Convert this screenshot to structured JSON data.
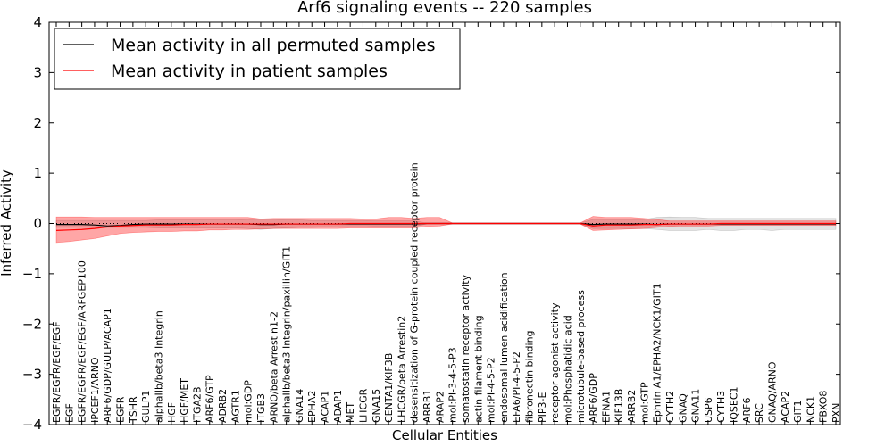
{
  "chart_data": {
    "type": "line",
    "title": "Arf6 signaling events -- 220 samples",
    "xlabel": "Cellular Entities",
    "ylabel": "Inferred Activity",
    "ylim": [
      -4,
      4
    ],
    "yticks": [
      -4,
      -3,
      -2,
      -1,
      0,
      1,
      2,
      3,
      4
    ],
    "ytick_labels": [
      "−4",
      "−3",
      "−2",
      "−1",
      "0",
      "1",
      "2",
      "3",
      "4"
    ],
    "legend": {
      "placement": "top-left",
      "entries": [
        {
          "label": "Mean activity in all permuted samples",
          "color": "#000000"
        },
        {
          "label": "Mean activity in patient samples",
          "color": "#ff0000"
        }
      ]
    },
    "categories": [
      "EGFR/EGFR/EGF/EGF",
      "EGF",
      "EGFR/EGFR/EGF/EGF/ARFGEP100",
      "IPCEF1/ARNO",
      "ARF6/GDP/GULP/ACAP1",
      "EGFR",
      "TSHR",
      "GULP1",
      "alphaIIb/beta3 Integrin",
      "HGF",
      "HGF/MET",
      "ITGA2B",
      "ARF6/GTP",
      "ADRB2",
      "AGTR1",
      "mol:GDP",
      "ITGB3",
      "ARNO/beta Arrestin1-2",
      "alphaIIb/beta3 Integrin/paxillin/GIT1",
      "GNA14",
      "EPHA2",
      "ACAP1",
      "ADAP1",
      "MET",
      "LHCGR",
      "GNA15",
      "CENTA1/KIF3B",
      "LHCGR/beta Arrestin2",
      "desensitization of G-protein coupled receptor protein",
      "ARRB1",
      "ARAP2",
      "mol:PI-3-4-5-P3",
      "somatostatin receptor activity",
      "actin filament binding",
      "mol:PI-4-5-P2",
      "endosomal lumen acidification",
      "EFA6/PI-4-5-P2",
      "fibronectin binding",
      "PIP3-E",
      "receptor agonist activity",
      "mol:Phosphatidic acid",
      "microtubule-based process",
      "ARF6/GDP",
      "EFNA1",
      "KIF13B",
      "ARRB2",
      "mol:GTP",
      "Ephrin A1/EPHA2/NCK1/GIT1",
      "CYTH2",
      "GNAQ",
      "GNA11",
      "USP6",
      "CYTH3",
      "IQSEC1",
      "ARF6",
      "SRC",
      "GNAQ/ARNO",
      "ACAP2",
      "GIT1",
      "NCK1",
      "FBXO8",
      "PXN"
    ],
    "series": [
      {
        "name": "Mean activity in all permuted samples",
        "color": "#000000",
        "values": [
          -0.02,
          -0.02,
          -0.02,
          -0.03,
          -0.05,
          -0.04,
          -0.02,
          -0.01,
          -0.01,
          -0.01,
          -0.01,
          -0.01,
          -0.01,
          -0.01,
          -0.01,
          -0.01,
          -0.02,
          -0.02,
          -0.01,
          -0.01,
          -0.01,
          -0.01,
          -0.01,
          -0.01,
          -0.01,
          -0.01,
          -0.01,
          -0.01,
          -0.01,
          0.0,
          0.0,
          0.0,
          0.0,
          0.0,
          0.0,
          0.0,
          0.0,
          0.0,
          0.0,
          0.0,
          0.0,
          0.0,
          -0.02,
          -0.01,
          -0.01,
          -0.01,
          -0.01,
          -0.02,
          -0.01,
          -0.01,
          -0.01,
          -0.01,
          -0.01,
          -0.01,
          -0.01,
          -0.01,
          -0.01,
          -0.01,
          -0.01,
          -0.01,
          -0.01,
          -0.01
        ],
        "band_low": [
          -0.08,
          -0.08,
          -0.08,
          -0.08,
          -0.08,
          -0.08,
          -0.08,
          -0.08,
          -0.09,
          -0.09,
          -0.09,
          -0.09,
          -0.09,
          -0.09,
          -0.09,
          -0.1,
          -0.12,
          -0.1,
          -0.09,
          -0.08,
          -0.08,
          -0.07,
          -0.07,
          -0.07,
          -0.07,
          -0.06,
          -0.06,
          -0.06,
          -0.06,
          -0.01,
          -0.01,
          -0.01,
          -0.01,
          -0.01,
          -0.01,
          -0.01,
          -0.01,
          -0.01,
          -0.01,
          -0.01,
          -0.01,
          -0.01,
          -0.1,
          -0.1,
          -0.1,
          -0.1,
          -0.1,
          -0.12,
          -0.14,
          -0.14,
          -0.14,
          -0.12,
          -0.14,
          -0.14,
          -0.12,
          -0.12,
          -0.14,
          -0.12,
          -0.12,
          -0.12,
          -0.12,
          -0.12
        ],
        "band_high": [
          0.06,
          0.06,
          0.06,
          0.06,
          0.06,
          0.06,
          0.06,
          0.06,
          0.07,
          0.07,
          0.07,
          0.07,
          0.07,
          0.07,
          0.07,
          0.08,
          0.08,
          0.08,
          0.07,
          0.07,
          0.06,
          0.06,
          0.06,
          0.06,
          0.06,
          0.05,
          0.05,
          0.05,
          0.05,
          0.01,
          0.01,
          0.01,
          0.01,
          0.01,
          0.01,
          0.01,
          0.01,
          0.01,
          0.01,
          0.01,
          0.01,
          0.01,
          0.08,
          0.08,
          0.08,
          0.08,
          0.08,
          0.12,
          0.13,
          0.12,
          0.12,
          0.1,
          0.1,
          0.1,
          0.1,
          0.1,
          0.1,
          0.1,
          0.1,
          0.1,
          0.1,
          0.1
        ]
      },
      {
        "name": "Mean activity in patient samples",
        "color": "#ff0000",
        "values": [
          -0.14,
          -0.13,
          -0.12,
          -0.1,
          -0.07,
          -0.05,
          -0.04,
          -0.03,
          -0.03,
          -0.03,
          -0.02,
          -0.02,
          -0.01,
          -0.01,
          -0.01,
          -0.01,
          -0.01,
          -0.01,
          -0.01,
          -0.01,
          -0.01,
          -0.01,
          -0.01,
          0.0,
          0.0,
          0.0,
          0.0,
          0.0,
          0.0,
          0.0,
          0.0,
          0.0,
          0.0,
          0.0,
          0.0,
          0.0,
          0.0,
          0.0,
          0.0,
          0.0,
          0.0,
          0.0,
          -0.05,
          -0.03,
          -0.03,
          -0.03,
          -0.02,
          -0.02,
          -0.01,
          -0.01,
          -0.01,
          -0.01,
          0.0,
          0.0,
          0.0,
          0.0,
          0.0,
          0.0,
          0.0,
          0.0,
          0.0,
          0.0
        ],
        "band_low": [
          -0.38,
          -0.36,
          -0.33,
          -0.3,
          -0.25,
          -0.2,
          -0.18,
          -0.17,
          -0.16,
          -0.16,
          -0.15,
          -0.15,
          -0.13,
          -0.13,
          -0.12,
          -0.12,
          -0.11,
          -0.1,
          -0.1,
          -0.1,
          -0.1,
          -0.1,
          -0.1,
          -0.09,
          -0.09,
          -0.09,
          -0.09,
          -0.09,
          -0.09,
          -0.06,
          -0.05,
          -0.01,
          -0.01,
          -0.01,
          -0.01,
          -0.01,
          -0.01,
          -0.01,
          -0.01,
          -0.01,
          -0.01,
          -0.01,
          -0.14,
          -0.13,
          -0.12,
          -0.11,
          -0.1,
          -0.08,
          -0.06,
          -0.05,
          -0.05,
          -0.05,
          -0.04,
          -0.04,
          -0.04,
          -0.04,
          -0.04,
          -0.04,
          -0.04,
          -0.04,
          -0.04,
          -0.04
        ],
        "band_high": [
          0.13,
          0.13,
          0.13,
          0.12,
          0.12,
          0.12,
          0.12,
          0.12,
          0.12,
          0.12,
          0.12,
          0.12,
          0.12,
          0.12,
          0.12,
          0.12,
          0.09,
          0.1,
          0.1,
          0.1,
          0.1,
          0.1,
          0.1,
          0.1,
          0.09,
          0.09,
          0.12,
          0.12,
          0.1,
          0.12,
          0.12,
          0.01,
          0.01,
          0.01,
          0.01,
          0.01,
          0.01,
          0.01,
          0.01,
          0.01,
          0.01,
          0.01,
          0.14,
          0.12,
          0.12,
          0.12,
          0.1,
          0.08,
          0.05,
          0.05,
          0.05,
          0.05,
          0.05,
          0.05,
          0.05,
          0.05,
          0.05,
          0.05,
          0.05,
          0.05,
          0.05,
          0.05
        ]
      }
    ]
  }
}
